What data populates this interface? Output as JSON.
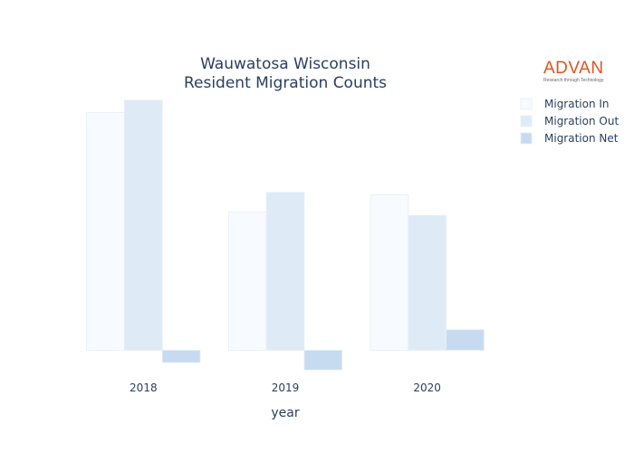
{
  "chart_data": {
    "type": "bar",
    "title_lines": [
      "Wauwatosa Wisconsin",
      "Resident Migration Counts"
    ],
    "xlabel": "year",
    "ylabel": "",
    "categories": [
      "2018",
      "2019",
      "2020"
    ],
    "series": [
      {
        "name": "Migration In",
        "values": [
          2425,
          1410,
          1585
        ],
        "color": "#f7fbff"
      },
      {
        "name": "Migration Out",
        "values": [
          2550,
          1610,
          1375
        ],
        "color": "#deebf7"
      },
      {
        "name": "Migration Net",
        "values": [
          -125,
          -200,
          210
        ],
        "color": "#c6dbef"
      }
    ],
    "ylim": [
      -300,
      2650
    ],
    "grid": false,
    "show_yticks": false,
    "legend_position": "top-right"
  },
  "branding": {
    "logo_text": "ADVAN",
    "logo_tagline": "Research through Technology",
    "logo_color": "#e2531f"
  }
}
